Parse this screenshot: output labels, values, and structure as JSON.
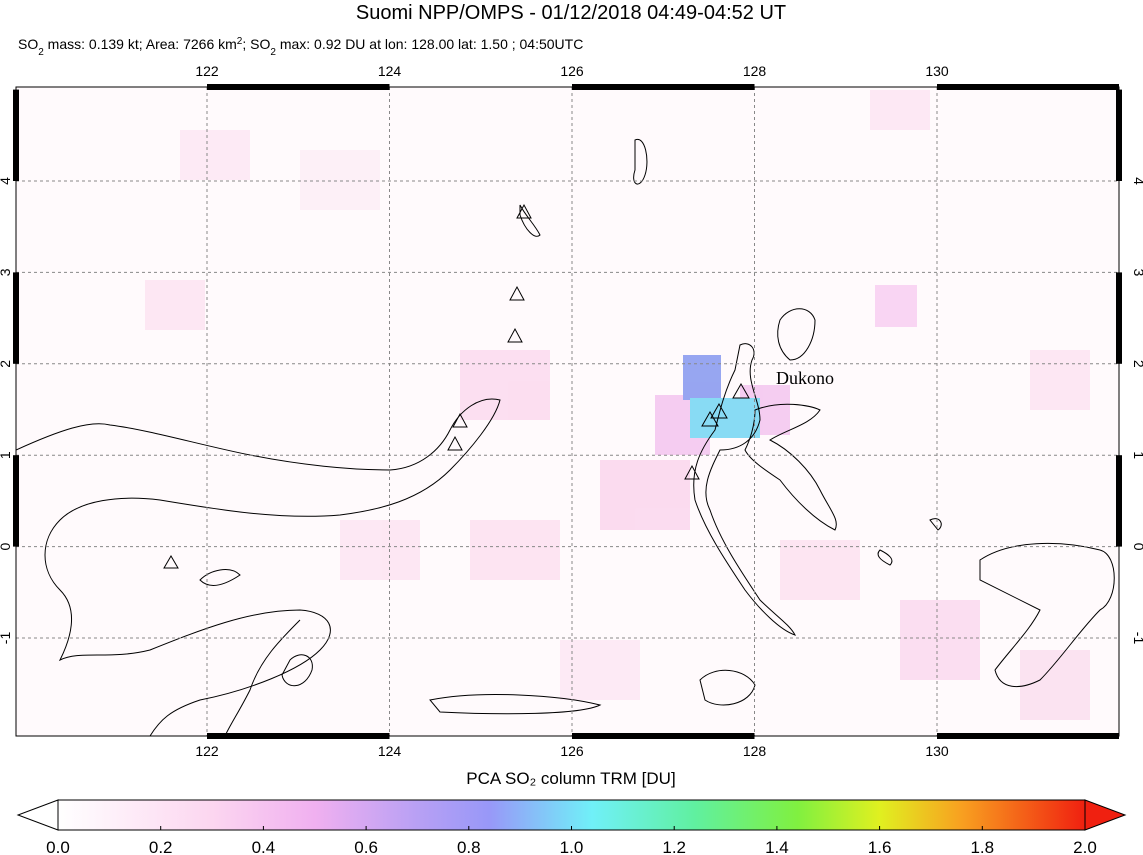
{
  "header": {
    "title": "Suomi NPP/OMPS - 01/12/2018 04:49-04:52 UT",
    "subtitle": [
      "SO",
      "2",
      " mass: 0.139 kt; Area: 7266 km",
      "2",
      "; SO",
      "2",
      " max: 0.92 DU at lon: 128.00 lat: 1.50 ; 04:50UTC"
    ]
  },
  "map": {
    "lon_labels": [
      "122",
      "124",
      "126",
      "128",
      "130"
    ],
    "lat_labels": [
      "-1",
      "0",
      "1",
      "2",
      "3",
      "4"
    ],
    "volcano_label": "Dukono"
  },
  "colorbar": {
    "label": "PCA SO₂ column TRM [DU]",
    "ticks": [
      "0.0",
      "0.2",
      "0.4",
      "0.6",
      "0.8",
      "1.0",
      "1.2",
      "1.4",
      "1.6",
      "1.8",
      "2.0"
    ]
  }
}
